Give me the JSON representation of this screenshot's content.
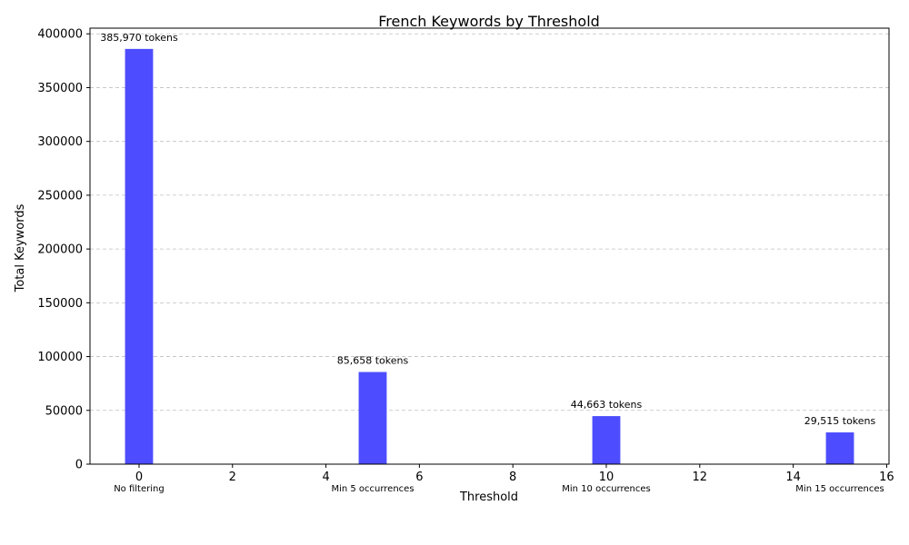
{
  "chart_data": {
    "type": "bar",
    "title": "French Keywords by Threshold",
    "xlabel": "Threshold",
    "ylabel": "Total Keywords",
    "x": [
      0,
      5,
      10,
      15
    ],
    "values": [
      385970,
      85658,
      44663,
      29515
    ],
    "data_labels": [
      "385,970 tokens",
      "85,658 tokens",
      "44,663 tokens",
      "29,515 tokens"
    ],
    "category_labels": [
      "No filtering",
      "Min 5 occurrences",
      "Min 10 occurrences",
      "Min 15 occurrences"
    ],
    "xlim": [
      -1.05,
      16.05
    ],
    "ylim": [
      0,
      405268.5
    ],
    "xticks": [
      0,
      2,
      4,
      6,
      8,
      10,
      12,
      14,
      16
    ],
    "yticks": [
      0,
      50000,
      100000,
      150000,
      200000,
      250000,
      300000,
      350000,
      400000
    ],
    "bar_width": 0.6,
    "grid": "y-dashed",
    "bar_color": "#4d4dff"
  }
}
